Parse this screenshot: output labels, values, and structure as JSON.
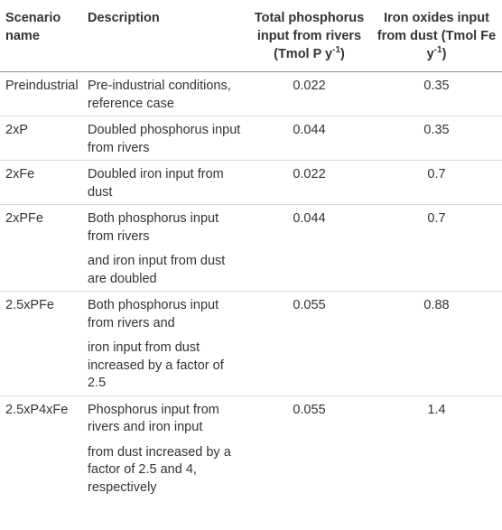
{
  "headers": {
    "scenario": "Scenario name",
    "description": "Description",
    "phosphorus_main": "Total phosphorus input from rivers",
    "phosphorus_unit_pre": "(Tmol P y",
    "phosphorus_unit_sup": "-1",
    "phosphorus_unit_post": ")",
    "iron_main": "Iron oxides input from dust",
    "iron_unit_pre": "(Tmol Fe y",
    "iron_unit_sup": "-1",
    "iron_unit_post": ")"
  },
  "rows": [
    {
      "scenario": "Preindustrial",
      "description": [
        "Pre-industrial conditions, reference case"
      ],
      "phosphorus": "0.022",
      "iron": "0.35"
    },
    {
      "scenario": "2xP",
      "description": [
        "Doubled phosphorus input from rivers"
      ],
      "phosphorus": "0.044",
      "iron": "0.35"
    },
    {
      "scenario": "2xFe",
      "description": [
        "Doubled iron input from dust"
      ],
      "phosphorus": "0.022",
      "iron": "0.7"
    },
    {
      "scenario": "2xPFe",
      "description": [
        "Both phosphorus input from rivers",
        "and iron input from dust are doubled"
      ],
      "phosphorus": "0.044",
      "iron": "0.7"
    },
    {
      "scenario": "2.5xPFe",
      "description": [
        "Both phosphorus input from rivers and",
        "iron input from dust increased by a factor of 2.5"
      ],
      "phosphorus": "0.055",
      "iron": "0.88"
    },
    {
      "scenario": "2.5xP4xFe",
      "description": [
        "Phosphorus input from rivers and iron input",
        "from dust increased by a factor of 2.5 and 4, respectively"
      ],
      "phosphorus": "0.055",
      "iron": "1.4"
    }
  ]
}
